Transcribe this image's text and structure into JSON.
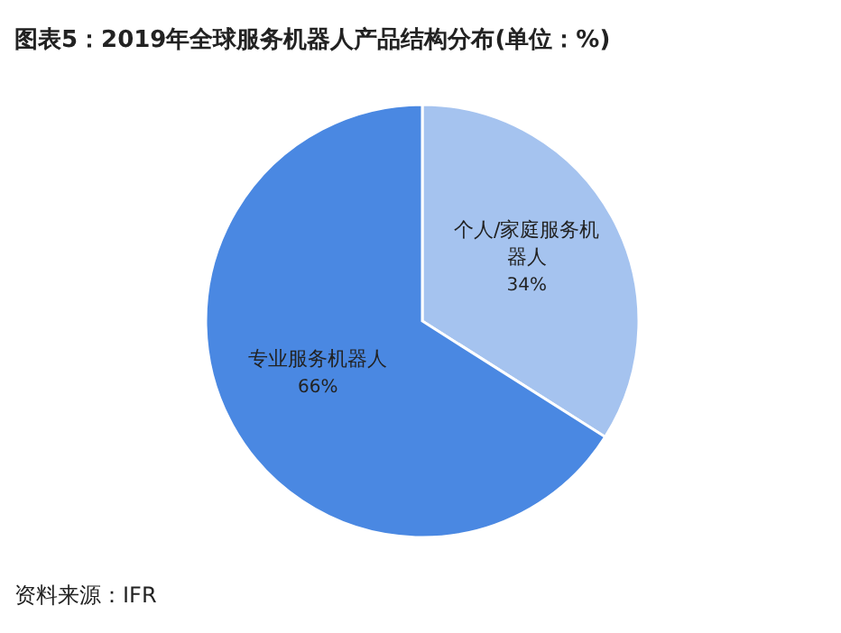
{
  "chart_data": {
    "type": "pie",
    "title": "图表5：2019年全球服务机器人产品结构分布(单位：%)",
    "categories": [
      "个人/家庭服务机器人",
      "专业服务机器人"
    ],
    "values": [
      34,
      66
    ],
    "colors": [
      "#a5c3ef",
      "#4a88e2"
    ],
    "value_labels": [
      "34%",
      "66%"
    ],
    "annotations": [
      "资料来源：IFR"
    ]
  }
}
